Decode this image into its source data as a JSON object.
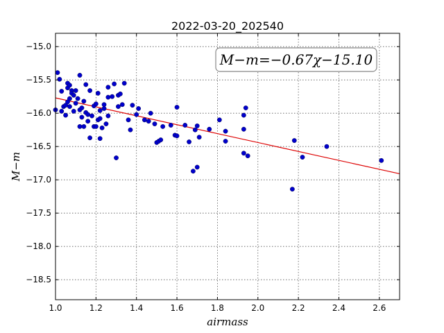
{
  "chart_data": {
    "type": "scatter",
    "title": "2022-03-20_202540",
    "xlabel": "airmass",
    "ylabel": "M−m",
    "xlim": [
      1.0,
      2.7
    ],
    "ylim": [
      -18.8,
      -14.8
    ],
    "y_inverted": true,
    "grid": true,
    "xticks": [
      "1.0",
      "1.2",
      "1.4",
      "1.6",
      "1.8",
      "2.0",
      "2.2",
      "2.4",
      "2.6"
    ],
    "yticks": [
      "−15.0",
      "−15.5",
      "−16.0",
      "−16.5",
      "−17.0",
      "−17.5",
      "−18.0",
      "−18.5"
    ],
    "annotation": "M−m=−0.67χ−15.10",
    "point_color": "#0000cc",
    "fit_color": "#dd0000",
    "fit": {
      "slope": -0.67,
      "intercept": -15.1
    },
    "points": [
      [
        1.0,
        -15.95
      ],
      [
        1.01,
        -15.39
      ],
      [
        1.02,
        -15.49
      ],
      [
        1.03,
        -15.67
      ],
      [
        1.03,
        -15.97
      ],
      [
        1.04,
        -15.9
      ],
      [
        1.05,
        -16.03
      ],
      [
        1.05,
        -15.88
      ],
      [
        1.06,
        -15.62
      ],
      [
        1.06,
        -15.55
      ],
      [
        1.06,
        -15.83
      ],
      [
        1.07,
        -15.78
      ],
      [
        1.07,
        -15.58
      ],
      [
        1.07,
        -15.9
      ],
      [
        1.08,
        -15.66
      ],
      [
        1.08,
        -15.7
      ],
      [
        1.09,
        -15.73
      ],
      [
        1.09,
        -15.97
      ],
      [
        1.1,
        -15.66
      ],
      [
        1.1,
        -15.85
      ],
      [
        1.11,
        -15.78
      ],
      [
        1.12,
        -15.43
      ],
      [
        1.12,
        -15.95
      ],
      [
        1.12,
        -16.2
      ],
      [
        1.13,
        -16.06
      ],
      [
        1.13,
        -15.92
      ],
      [
        1.14,
        -15.82
      ],
      [
        1.14,
        -16.2
      ],
      [
        1.15,
        -15.57
      ],
      [
        1.15,
        -15.99
      ],
      [
        1.16,
        -16.02
      ],
      [
        1.16,
        -16.12
      ],
      [
        1.17,
        -16.37
      ],
      [
        1.17,
        -15.66
      ],
      [
        1.18,
        -16.04
      ],
      [
        1.19,
        -16.2
      ],
      [
        1.19,
        -15.89
      ],
      [
        1.2,
        -16.2
      ],
      [
        1.2,
        -15.86
      ],
      [
        1.21,
        -15.7
      ],
      [
        1.21,
        -16.1
      ],
      [
        1.22,
        -15.96
      ],
      [
        1.22,
        -16.08
      ],
      [
        1.22,
        -16.38
      ],
      [
        1.23,
        -16.22
      ],
      [
        1.24,
        -15.93
      ],
      [
        1.24,
        -15.87
      ],
      [
        1.25,
        -16.16
      ],
      [
        1.26,
        -15.61
      ],
      [
        1.26,
        -16.04
      ],
      [
        1.26,
        -15.76
      ],
      [
        1.28,
        -15.75
      ],
      [
        1.29,
        -15.56
      ],
      [
        1.3,
        -16.67
      ],
      [
        1.31,
        -15.73
      ],
      [
        1.31,
        -15.9
      ],
      [
        1.32,
        -15.71
      ],
      [
        1.33,
        -15.87
      ],
      [
        1.34,
        -15.55
      ],
      [
        1.36,
        -16.1
      ],
      [
        1.37,
        -16.25
      ],
      [
        1.38,
        -15.88
      ],
      [
        1.4,
        -16.02
      ],
      [
        1.41,
        -15.93
      ],
      [
        1.44,
        -16.1
      ],
      [
        1.46,
        -16.12
      ],
      [
        1.47,
        -16.0
      ],
      [
        1.49,
        -16.16
      ],
      [
        1.5,
        -16.44
      ],
      [
        1.51,
        -16.42
      ],
      [
        1.52,
        -16.4
      ],
      [
        1.53,
        -16.2
      ],
      [
        1.57,
        -16.18
      ],
      [
        1.59,
        -16.33
      ],
      [
        1.6,
        -16.34
      ],
      [
        1.6,
        -15.91
      ],
      [
        1.64,
        -16.18
      ],
      [
        1.66,
        -16.43
      ],
      [
        1.68,
        -16.87
      ],
      [
        1.69,
        -16.25
      ],
      [
        1.7,
        -16.19
      ],
      [
        1.7,
        -16.81
      ],
      [
        1.71,
        -16.36
      ],
      [
        1.76,
        -16.24
      ],
      [
        1.81,
        -16.1
      ],
      [
        1.84,
        -16.42
      ],
      [
        1.84,
        -16.27
      ],
      [
        1.93,
        -16.6
      ],
      [
        1.93,
        -16.24
      ],
      [
        1.93,
        -16.03
      ],
      [
        1.94,
        -15.92
      ],
      [
        1.95,
        -16.64
      ],
      [
        2.17,
        -17.14
      ],
      [
        2.18,
        -16.41
      ],
      [
        2.22,
        -16.66
      ],
      [
        2.34,
        -16.5
      ],
      [
        2.61,
        -16.71
      ]
    ]
  }
}
